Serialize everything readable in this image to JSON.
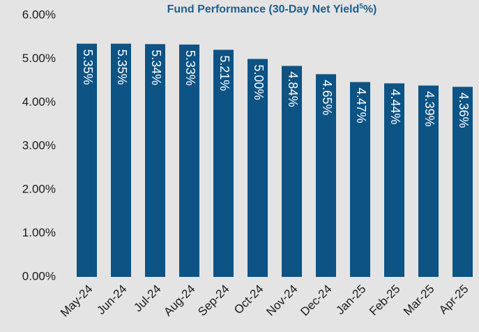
{
  "chart_data": {
    "type": "bar",
    "title": "Fund Performance (30-Day Net Yield",
    "title_superscript": "5",
    "title_suffix": "%)",
    "categories": [
      "May-24",
      "Jun-24",
      "Jul-24",
      "Aug-24",
      "Sep-24",
      "Oct-24",
      "Nov-24",
      "Dec-24",
      "Jan-25",
      "Feb-25",
      "Mar-25",
      "Apr-25"
    ],
    "values": [
      5.35,
      5.35,
      5.34,
      5.33,
      5.21,
      5.0,
      4.84,
      4.65,
      4.47,
      4.44,
      4.39,
      4.36
    ],
    "value_labels": [
      "5.35%",
      "5.35%",
      "5.34%",
      "5.33%",
      "5.21%",
      "5.00%",
      "4.84%",
      "4.65%",
      "4.47%",
      "4.44%",
      "4.39%",
      "4.36%"
    ],
    "color": "#0d5384",
    "ylim": [
      0,
      6
    ],
    "yticks": [
      {
        "value": 0,
        "label": "0.00%"
      },
      {
        "value": 1,
        "label": "1.00%"
      },
      {
        "value": 2,
        "label": "2.00%"
      },
      {
        "value": 3,
        "label": "3.00%"
      },
      {
        "value": 4,
        "label": "4.00%"
      },
      {
        "value": 5,
        "label": "5.00%"
      },
      {
        "value": 6,
        "label": "6.00%"
      }
    ],
    "grid": false
  }
}
